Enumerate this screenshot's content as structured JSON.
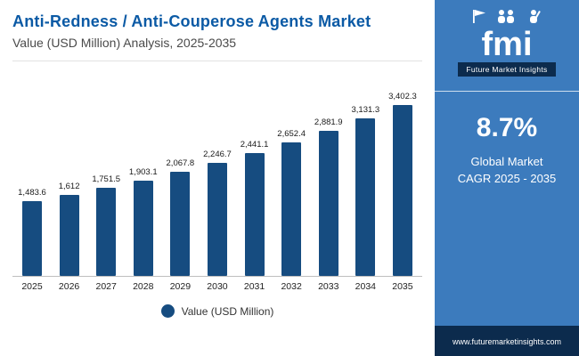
{
  "header": {
    "title": "Anti-Redness / Anti-Couperose Agents Market",
    "subtitle": "Value (USD Million) Analysis, 2025-2035"
  },
  "chart_data": {
    "type": "bar",
    "categories": [
      "2025",
      "2026",
      "2027",
      "2028",
      "2029",
      "2030",
      "2031",
      "2032",
      "2033",
      "2034",
      "2035"
    ],
    "values": [
      1483.6,
      1612,
      1751.5,
      1903.1,
      2067.8,
      2246.7,
      2441.1,
      2652.4,
      2881.9,
      3131.3,
      3402.3
    ],
    "value_labels": [
      "1,483.6",
      "1,612",
      "1,751.5",
      "1,903.1",
      "2,067.8",
      "2,246.7",
      "2,441.1",
      "2,652.4",
      "2,881.9",
      "3,131.3",
      "3,402.3"
    ],
    "title": "Anti-Redness / Anti-Couperose Agents Market Value (USD Million)",
    "xlabel": "",
    "ylabel": "Value (USD Million)",
    "ylim": [
      0,
      3500
    ],
    "legend": "Value (USD Million)",
    "legend_position": "bottom",
    "grid": false,
    "bar_color": "#164c80"
  },
  "panel": {
    "logo_text": "fmi",
    "brand": "Future Market Insights",
    "cagr_value": "8.7%",
    "cagr_line1": "Global Market",
    "cagr_line2": "CAGR 2025 - 2035",
    "website": "www.futuremarketinsights.com"
  },
  "colors": {
    "title_blue": "#0b5aa5",
    "bar_navy": "#164c80",
    "panel_blue": "#3c7bbd",
    "footer_navy": "#0c2b4d"
  }
}
